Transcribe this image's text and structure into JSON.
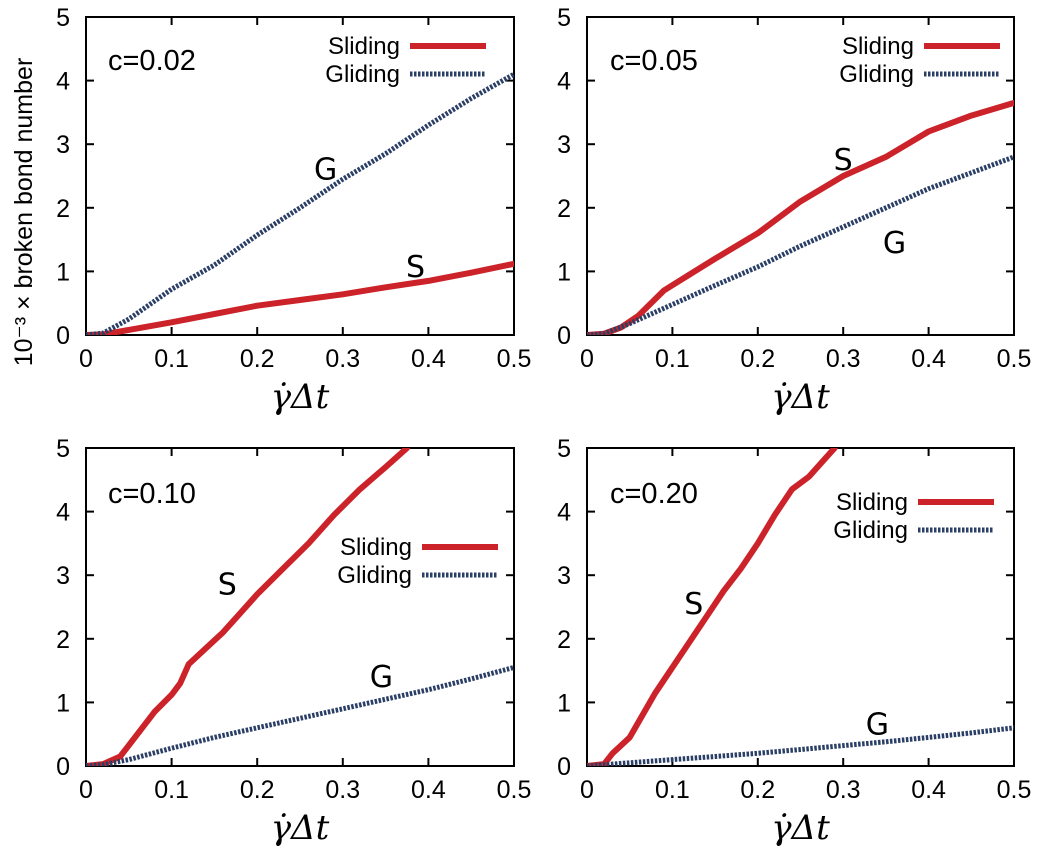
{
  "figure": {
    "ylabel": "10⁻³ × broken bond number",
    "xlabel": "γ̇Δt"
  },
  "style": {
    "sliding_color": "#cc2229",
    "gliding_color": "#2b3f66"
  },
  "chart_data": [
    {
      "type": "line",
      "label": "c=0.02",
      "xlim": [
        0,
        0.5
      ],
      "ylim": [
        0,
        5
      ],
      "xticks": [
        "0",
        "0.1",
        "0.2",
        "0.3",
        "0.4",
        "0.5"
      ],
      "yticks": [
        "0",
        "1",
        "2",
        "3",
        "4",
        "5"
      ],
      "xlabel": "γ̇Δt",
      "ylabel": "10⁻³ × broken bond number",
      "legend": {
        "position": "top-right",
        "entries": [
          "Sliding",
          "Gliding"
        ]
      },
      "series": [
        {
          "name": "Sliding",
          "x": [
            0,
            0.02,
            0.05,
            0.1,
            0.15,
            0.2,
            0.25,
            0.3,
            0.35,
            0.4,
            0.45,
            0.5
          ],
          "y": [
            0,
            0.01,
            0.08,
            0.2,
            0.33,
            0.46,
            0.55,
            0.64,
            0.75,
            0.85,
            0.98,
            1.12
          ]
        },
        {
          "name": "Gliding",
          "x": [
            0,
            0.02,
            0.05,
            0.1,
            0.15,
            0.2,
            0.25,
            0.3,
            0.35,
            0.4,
            0.45,
            0.5
          ],
          "y": [
            0,
            0.03,
            0.25,
            0.72,
            1.1,
            1.57,
            2.0,
            2.45,
            2.85,
            3.3,
            3.72,
            4.1
          ]
        }
      ],
      "annotations": [
        {
          "text": "G",
          "x": 0.28,
          "y": 2.6
        },
        {
          "text": "S",
          "x": 0.385,
          "y": 1.07
        }
      ]
    },
    {
      "type": "line",
      "label": "c=0.05",
      "xlim": [
        0,
        0.5
      ],
      "ylim": [
        0,
        5
      ],
      "xticks": [
        "0",
        "0.1",
        "0.2",
        "0.3",
        "0.4",
        "0.5"
      ],
      "yticks": [
        "0",
        "1",
        "2",
        "3",
        "4",
        "5"
      ],
      "xlabel": "γ̇Δt",
      "ylabel": "",
      "legend": {
        "position": "top-right",
        "entries": [
          "Sliding",
          "Gliding"
        ]
      },
      "series": [
        {
          "name": "Sliding",
          "x": [
            0,
            0.02,
            0.04,
            0.06,
            0.09,
            0.12,
            0.15,
            0.2,
            0.25,
            0.3,
            0.35,
            0.4,
            0.45,
            0.5
          ],
          "y": [
            0,
            0.02,
            0.12,
            0.3,
            0.7,
            0.95,
            1.2,
            1.6,
            2.1,
            2.5,
            2.8,
            3.2,
            3.45,
            3.65
          ]
        },
        {
          "name": "Gliding",
          "x": [
            0,
            0.02,
            0.05,
            0.1,
            0.15,
            0.2,
            0.25,
            0.3,
            0.35,
            0.4,
            0.45,
            0.5
          ],
          "y": [
            0,
            0.02,
            0.18,
            0.48,
            0.78,
            1.07,
            1.4,
            1.7,
            2.0,
            2.3,
            2.55,
            2.8
          ]
        }
      ],
      "annotations": [
        {
          "text": "S",
          "x": 0.3,
          "y": 2.75
        },
        {
          "text": "G",
          "x": 0.36,
          "y": 1.45
        }
      ]
    },
    {
      "type": "line",
      "label": "c=0.10",
      "xlim": [
        0,
        0.5
      ],
      "ylim": [
        0,
        5
      ],
      "xticks": [
        "0",
        "0.1",
        "0.2",
        "0.3",
        "0.4",
        "0.5"
      ],
      "yticks": [
        "0",
        "1",
        "2",
        "3",
        "4",
        "5"
      ],
      "xlabel": "γ̇Δt",
      "ylabel": "",
      "legend": {
        "position": "center-right",
        "entries": [
          "Sliding",
          "Gliding"
        ]
      },
      "series": [
        {
          "name": "Sliding",
          "x": [
            0,
            0.02,
            0.04,
            0.06,
            0.08,
            0.1,
            0.11,
            0.12,
            0.14,
            0.16,
            0.18,
            0.2,
            0.23,
            0.26,
            0.29,
            0.32,
            0.35,
            0.375
          ],
          "y": [
            0,
            0.03,
            0.15,
            0.5,
            0.85,
            1.12,
            1.3,
            1.6,
            1.85,
            2.1,
            2.4,
            2.7,
            3.1,
            3.5,
            3.95,
            4.35,
            4.7,
            5.0
          ]
        },
        {
          "name": "Gliding",
          "x": [
            0,
            0.02,
            0.05,
            0.1,
            0.15,
            0.2,
            0.25,
            0.3,
            0.35,
            0.4,
            0.45,
            0.5
          ],
          "y": [
            0,
            0.02,
            0.1,
            0.28,
            0.45,
            0.6,
            0.75,
            0.9,
            1.05,
            1.2,
            1.37,
            1.55
          ]
        }
      ],
      "annotations": [
        {
          "text": "S",
          "x": 0.165,
          "y": 2.85
        },
        {
          "text": "G",
          "x": 0.345,
          "y": 1.4
        }
      ]
    },
    {
      "type": "line",
      "label": "c=0.20",
      "xlim": [
        0,
        0.5
      ],
      "ylim": [
        0,
        5
      ],
      "xticks": [
        "0",
        "0.1",
        "0.2",
        "0.3",
        "0.4",
        "0.5"
      ],
      "yticks": [
        "0",
        "1",
        "2",
        "3",
        "4",
        "5"
      ],
      "xlabel": "γ̇Δt",
      "ylabel": "",
      "legend": {
        "position": "top-right",
        "entries": [
          "Sliding",
          "Gliding"
        ]
      },
      "series": [
        {
          "name": "Sliding",
          "x": [
            0,
            0.02,
            0.03,
            0.05,
            0.08,
            0.1,
            0.12,
            0.14,
            0.16,
            0.18,
            0.2,
            0.22,
            0.24,
            0.26,
            0.28,
            0.29
          ],
          "y": [
            0,
            0.03,
            0.2,
            0.45,
            1.15,
            1.55,
            1.95,
            2.35,
            2.75,
            3.1,
            3.5,
            3.95,
            4.35,
            4.55,
            4.85,
            5.0
          ]
        },
        {
          "name": "Gliding",
          "x": [
            0,
            0.02,
            0.05,
            0.1,
            0.15,
            0.2,
            0.25,
            0.3,
            0.35,
            0.4,
            0.45,
            0.5
          ],
          "y": [
            0,
            0.02,
            0.05,
            0.1,
            0.15,
            0.2,
            0.26,
            0.32,
            0.38,
            0.45,
            0.52,
            0.6
          ]
        }
      ],
      "annotations": [
        {
          "text": "S",
          "x": 0.125,
          "y": 2.55
        },
        {
          "text": "G",
          "x": 0.34,
          "y": 0.65
        }
      ]
    }
  ]
}
